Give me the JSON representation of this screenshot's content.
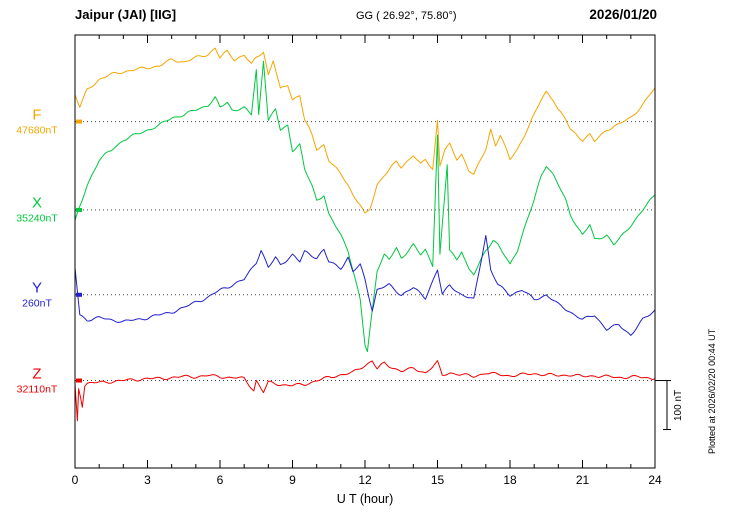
{
  "header": {
    "station": "Jaipur (JAI)  [IIG]",
    "coords": "GG ( 26.92°, 75.80°)",
    "date": "2026/01/20"
  },
  "footer_note": "Plotted at 2026/02/20 00:44 UT",
  "chart_data": {
    "type": "line",
    "title": "Jaipur (JAI) [IIG] magnetogram 2026/01/20",
    "xlabel": "U T (hour)",
    "ylabel": "",
    "x_range": [
      0,
      24
    ],
    "x_ticks": [
      0,
      3,
      6,
      9,
      12,
      15,
      18,
      21,
      24
    ],
    "x_minor_step": 1,
    "grid": "dotted horizontal reference line per trace",
    "legend_position": "left margin",
    "scale_bar": {
      "label": "100 nT",
      "nT": 100
    },
    "point_format": "[UT hour, offset in nT from ref_nT]",
    "series": [
      {
        "name": "F",
        "ref_label": "47680nT",
        "ref_nT": 47680,
        "color": "#f5a600",
        "baseline_frac": 0.2,
        "points": [
          [
            0,
            55
          ],
          [
            0.2,
            29
          ],
          [
            0.5,
            65
          ],
          [
            1,
            86
          ],
          [
            1.5,
            96
          ],
          [
            2,
            102
          ],
          [
            2.5,
            106
          ],
          [
            3,
            110
          ],
          [
            3.5,
            114
          ],
          [
            4,
            126
          ],
          [
            4.5,
            122
          ],
          [
            5,
            130
          ],
          [
            5.5,
            137
          ],
          [
            5.8,
            151
          ],
          [
            6,
            130
          ],
          [
            6.3,
            143
          ],
          [
            6.6,
            126
          ],
          [
            7,
            137
          ],
          [
            7.3,
            116
          ],
          [
            7.5,
            130
          ],
          [
            7.8,
            143
          ],
          [
            8,
            96
          ],
          [
            8.2,
            126
          ],
          [
            8.5,
            65
          ],
          [
            8.8,
            75
          ],
          [
            9,
            45
          ],
          [
            9.3,
            55
          ],
          [
            9.5,
            4
          ],
          [
            9.8,
            -27
          ],
          [
            10,
            -57
          ],
          [
            10.3,
            -47
          ],
          [
            10.5,
            -78
          ],
          [
            11,
            -108
          ],
          [
            11.3,
            -129
          ],
          [
            11.5,
            -149
          ],
          [
            11.8,
            -169
          ],
          [
            12,
            -190
          ],
          [
            12.2,
            -180
          ],
          [
            12.5,
            -129
          ],
          [
            12.8,
            -108
          ],
          [
            13,
            -98
          ],
          [
            13.3,
            -82
          ],
          [
            13.5,
            -94
          ],
          [
            14,
            -67
          ],
          [
            14.3,
            -88
          ],
          [
            14.5,
            -78
          ],
          [
            14.8,
            -98
          ],
          [
            15,
            4
          ],
          [
            15.1,
            -88
          ],
          [
            15.3,
            -57
          ],
          [
            15.5,
            -47
          ],
          [
            15.8,
            -78
          ],
          [
            16,
            -67
          ],
          [
            16.3,
            -98
          ],
          [
            16.5,
            -108
          ],
          [
            17,
            -57
          ],
          [
            17.2,
            -16
          ],
          [
            17.4,
            -47
          ],
          [
            17.6,
            -27
          ],
          [
            18,
            -78
          ],
          [
            18.3,
            -57
          ],
          [
            18.5,
            -37
          ],
          [
            19,
            14
          ],
          [
            19.3,
            45
          ],
          [
            19.5,
            61
          ],
          [
            19.8,
            45
          ],
          [
            20,
            24
          ],
          [
            20.3,
            4
          ],
          [
            20.5,
            -16
          ],
          [
            21,
            -37
          ],
          [
            21.3,
            -27
          ],
          [
            21.5,
            -41
          ],
          [
            22,
            -16
          ],
          [
            22.5,
            -6
          ],
          [
            23,
            8
          ],
          [
            23.5,
            35
          ],
          [
            24,
            69
          ]
        ]
      },
      {
        "name": "X",
        "ref_label": "35240nT",
        "ref_nT": 35240,
        "color": "#00c840",
        "baseline_frac": 0.404,
        "points": [
          [
            0,
            -24
          ],
          [
            0.3,
            20
          ],
          [
            0.5,
            51
          ],
          [
            1,
            102
          ],
          [
            1.5,
            122
          ],
          [
            2,
            143
          ],
          [
            2.5,
            153
          ],
          [
            3,
            163
          ],
          [
            3.5,
            173
          ],
          [
            4,
            188
          ],
          [
            4.5,
            194
          ],
          [
            5,
            204
          ],
          [
            5.5,
            214
          ],
          [
            5.8,
            229
          ],
          [
            6,
            208
          ],
          [
            6.3,
            220
          ],
          [
            6.5,
            204
          ],
          [
            7,
            208
          ],
          [
            7.3,
            194
          ],
          [
            7.5,
            286
          ],
          [
            7.6,
            194
          ],
          [
            7.8,
            306
          ],
          [
            8,
            184
          ],
          [
            8.3,
            204
          ],
          [
            8.5,
            163
          ],
          [
            8.8,
            173
          ],
          [
            9,
            122
          ],
          [
            9.3,
            133
          ],
          [
            9.5,
            82
          ],
          [
            9.8,
            51
          ],
          [
            10,
            20
          ],
          [
            10.3,
            31
          ],
          [
            10.5,
            -10
          ],
          [
            11,
            -51
          ],
          [
            11.3,
            -82
          ],
          [
            11.5,
            -122
          ],
          [
            11.8,
            -184
          ],
          [
            12,
            -276
          ],
          [
            12.1,
            -290
          ],
          [
            12.3,
            -204
          ],
          [
            12.5,
            -122
          ],
          [
            12.8,
            -92
          ],
          [
            13,
            -102
          ],
          [
            13.3,
            -78
          ],
          [
            13.5,
            -98
          ],
          [
            14,
            -71
          ],
          [
            14.3,
            -92
          ],
          [
            14.5,
            -82
          ],
          [
            14.8,
            -112
          ],
          [
            15,
            153
          ],
          [
            15.1,
            -92
          ],
          [
            15.4,
            92
          ],
          [
            15.5,
            -82
          ],
          [
            15.8,
            -102
          ],
          [
            16,
            -82
          ],
          [
            16.3,
            -122
          ],
          [
            16.5,
            -133
          ],
          [
            17,
            -82
          ],
          [
            17.3,
            -61
          ],
          [
            17.5,
            -71
          ],
          [
            18,
            -112
          ],
          [
            18.3,
            -82
          ],
          [
            18.5,
            -51
          ],
          [
            19,
            20
          ],
          [
            19.3,
            71
          ],
          [
            19.5,
            92
          ],
          [
            19.8,
            71
          ],
          [
            20,
            51
          ],
          [
            20.3,
            20
          ],
          [
            20.5,
            -10
          ],
          [
            21,
            -51
          ],
          [
            21.3,
            -31
          ],
          [
            21.5,
            -61
          ],
          [
            22,
            -51
          ],
          [
            22.3,
            -71
          ],
          [
            22.5,
            -61
          ],
          [
            23,
            -31
          ],
          [
            23.5,
            0
          ],
          [
            24,
            31
          ]
        ]
      },
      {
        "name": "Y",
        "ref_label": "260nT",
        "ref_nT": 260,
        "color": "#2222cc",
        "baseline_frac": 0.6,
        "points": [
          [
            0,
            55
          ],
          [
            0.2,
            -41
          ],
          [
            0.5,
            -51
          ],
          [
            1,
            -47
          ],
          [
            1.5,
            -51
          ],
          [
            2,
            -55
          ],
          [
            2.5,
            -51
          ],
          [
            3,
            -47
          ],
          [
            3.5,
            -41
          ],
          [
            4,
            -35
          ],
          [
            4.5,
            -27
          ],
          [
            5,
            -14
          ],
          [
            5.5,
            -6
          ],
          [
            6,
            10
          ],
          [
            6.5,
            20
          ],
          [
            7,
            31
          ],
          [
            7.5,
            67
          ],
          [
            7.7,
            92
          ],
          [
            8,
            55
          ],
          [
            8.3,
            76
          ],
          [
            8.5,
            61
          ],
          [
            9,
            82
          ],
          [
            9.3,
            67
          ],
          [
            9.5,
            88
          ],
          [
            10,
            76
          ],
          [
            10.3,
            92
          ],
          [
            10.5,
            67
          ],
          [
            11,
            55
          ],
          [
            11.3,
            76
          ],
          [
            11.5,
            47
          ],
          [
            11.8,
            61
          ],
          [
            12,
            31
          ],
          [
            12.2,
            -10
          ],
          [
            12.3,
            -31
          ],
          [
            12.5,
            10
          ],
          [
            13,
            20
          ],
          [
            13.5,
            0
          ],
          [
            14,
            14
          ],
          [
            14.5,
            -6
          ],
          [
            15,
            51
          ],
          [
            15.2,
            0
          ],
          [
            15.5,
            20
          ],
          [
            16,
            0
          ],
          [
            16.5,
            -10
          ],
          [
            17,
            122
          ],
          [
            17.2,
            51
          ],
          [
            17.5,
            20
          ],
          [
            18,
            0
          ],
          [
            18.5,
            10
          ],
          [
            19,
            -10
          ],
          [
            19.5,
            0
          ],
          [
            20,
            -20
          ],
          [
            20.5,
            -35
          ],
          [
            21,
            -51
          ],
          [
            21.5,
            -41
          ],
          [
            22,
            -71
          ],
          [
            22.5,
            -61
          ],
          [
            23,
            -82
          ],
          [
            23.5,
            -51
          ],
          [
            24,
            -31
          ]
        ]
      },
      {
        "name": "Z",
        "ref_label": "32110nT",
        "ref_nT": 32110,
        "color": "#ee0000",
        "baseline_frac": 0.798,
        "points": [
          [
            0,
            -10
          ],
          [
            0.1,
            -82
          ],
          [
            0.15,
            -16
          ],
          [
            0.3,
            -51
          ],
          [
            0.4,
            -10
          ],
          [
            0.5,
            -6
          ],
          [
            1,
            -4
          ],
          [
            1.5,
            -2
          ],
          [
            2,
            0
          ],
          [
            2.5,
            2
          ],
          [
            3,
            4
          ],
          [
            3.5,
            4
          ],
          [
            4,
            6
          ],
          [
            4.5,
            8
          ],
          [
            5,
            8
          ],
          [
            5.5,
            10
          ],
          [
            6,
            8
          ],
          [
            6.5,
            6
          ],
          [
            7,
            4
          ],
          [
            7.4,
            -20
          ],
          [
            7.5,
            0
          ],
          [
            7.8,
            -24
          ],
          [
            8,
            -4
          ],
          [
            8.5,
            -8
          ],
          [
            9,
            -10
          ],
          [
            9.5,
            -8
          ],
          [
            10,
            0
          ],
          [
            10.5,
            6
          ],
          [
            11,
            12
          ],
          [
            11.5,
            16
          ],
          [
            12,
            31
          ],
          [
            12.3,
            41
          ],
          [
            12.5,
            24
          ],
          [
            12.8,
            35
          ],
          [
            13,
            29
          ],
          [
            13.5,
            20
          ],
          [
            14,
            24
          ],
          [
            14.5,
            16
          ],
          [
            15,
            37
          ],
          [
            15.2,
            10
          ],
          [
            15.5,
            16
          ],
          [
            16,
            12
          ],
          [
            16.5,
            8
          ],
          [
            17,
            16
          ],
          [
            17.5,
            12
          ],
          [
            18,
            10
          ],
          [
            18.5,
            12
          ],
          [
            19,
            14
          ],
          [
            19.5,
            12
          ],
          [
            20,
            10
          ],
          [
            20.5,
            12
          ],
          [
            21,
            8
          ],
          [
            21.5,
            10
          ],
          [
            22,
            8
          ],
          [
            22.5,
            6
          ],
          [
            23,
            8
          ],
          [
            23.5,
            6
          ],
          [
            24,
            4
          ]
        ]
      }
    ]
  }
}
